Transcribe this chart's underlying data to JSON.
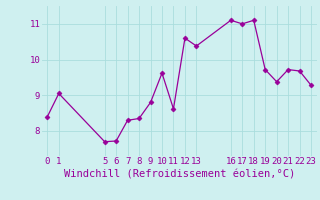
{
  "x": [
    0,
    1,
    5,
    6,
    7,
    8,
    9,
    10,
    11,
    12,
    13,
    16,
    17,
    18,
    19,
    20,
    21,
    22,
    23
  ],
  "y": [
    8.4,
    9.05,
    7.7,
    7.72,
    8.3,
    8.35,
    8.8,
    9.62,
    8.62,
    10.6,
    10.38,
    11.1,
    11.0,
    11.1,
    9.72,
    9.38,
    9.72,
    9.68,
    9.28
  ],
  "line_color": "#990099",
  "marker": "D",
  "marker_size": 2.5,
  "bg_color": "#cff0f0",
  "grid_color": "#aadddd",
  "xlabel": "Windchill (Refroidissement éolien,°C)",
  "xlabel_color": "#990099",
  "xlabel_fontsize": 7.5,
  "tick_color": "#990099",
  "tick_fontsize": 6.5,
  "yticks": [
    8,
    9,
    10,
    11
  ],
  "xticks": [
    0,
    1,
    5,
    6,
    7,
    8,
    9,
    10,
    11,
    12,
    13,
    16,
    17,
    18,
    19,
    20,
    21,
    22,
    23
  ],
  "ylim": [
    7.3,
    11.5
  ],
  "xlim": [
    -0.5,
    23.5
  ]
}
